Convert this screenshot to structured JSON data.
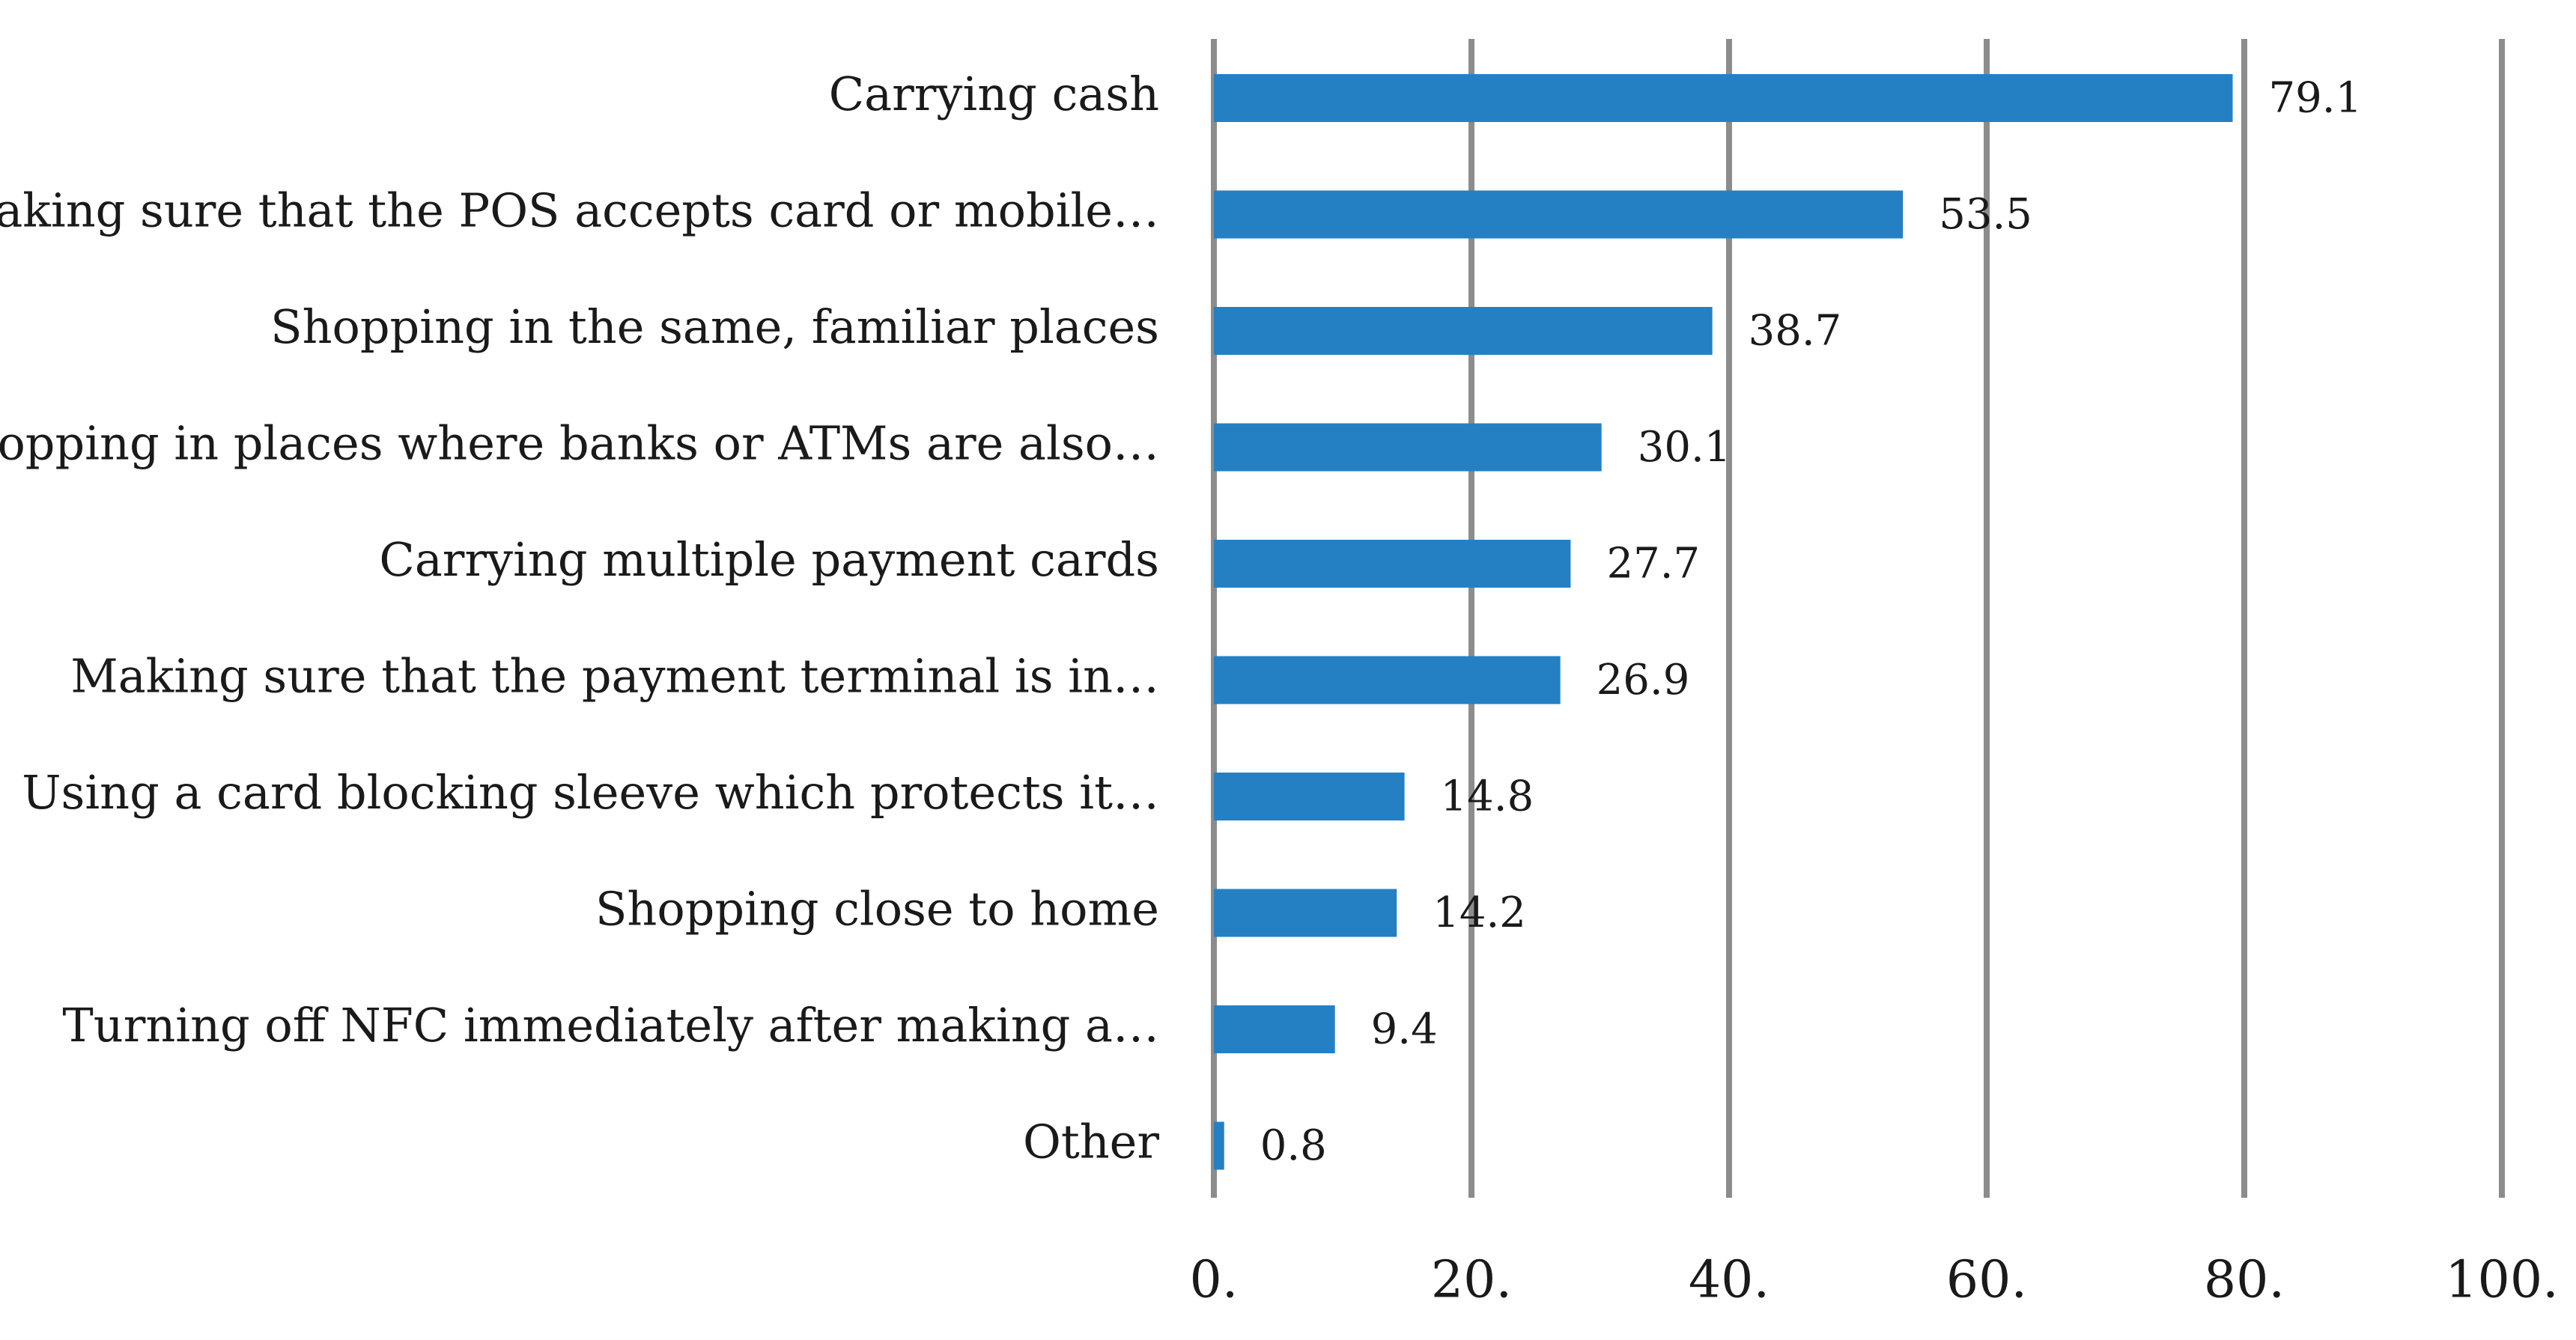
{
  "chart_data": {
    "type": "bar",
    "orientation": "horizontal",
    "title": "",
    "xlabel": "",
    "ylabel": "",
    "categories": [
      "Carrying cash",
      "Making sure that the POS accepts card or mobile…",
      "Shopping in the same, familiar places",
      "Shopping in places where banks or ATMs are also…",
      "Carrying multiple payment cards",
      "Making sure that the payment terminal is in…",
      "Using a card blocking sleeve which protects it…",
      "Shopping close to home",
      "Turning off NFC immediately after making a…",
      "Other"
    ],
    "values": [
      79.1,
      53.5,
      38.7,
      30.1,
      27.7,
      26.9,
      14.8,
      14.2,
      9.4,
      0.8
    ],
    "value_labels": [
      "79.1",
      "53.5",
      "38.7",
      "30.1",
      "27.7",
      "26.9",
      "14.8",
      "14.2",
      "9.4",
      "0.8"
    ],
    "xlim": [
      0,
      100
    ],
    "xticks": [
      0,
      20,
      40,
      60,
      80,
      100
    ],
    "xtick_labels": [
      "0.",
      "20.",
      "40.",
      "60.",
      "80.",
      "100."
    ],
    "grid": "vertical",
    "legend": "none",
    "colors": {
      "bar": "#2580c3",
      "grid": "#8c8c8c",
      "text": "#1a1a1a"
    }
  }
}
